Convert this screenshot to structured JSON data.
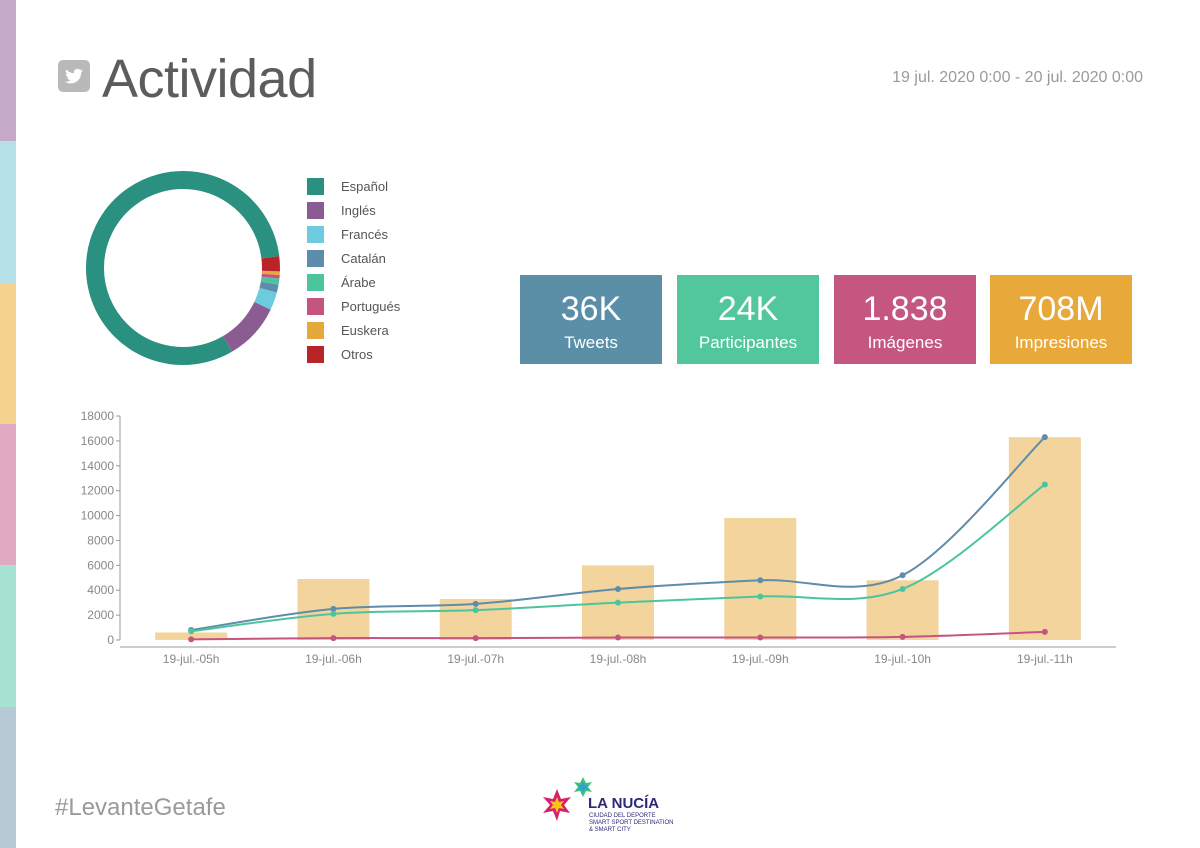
{
  "header": {
    "title": "Actividad",
    "icon": "twitter-icon",
    "date_range": "19 jul. 2020 0:00 - 20 jul. 2020 0:00"
  },
  "side_strip_colors": [
    "#c4a9c8",
    "#b6e1e8",
    "#f5d38f",
    "#e2a9c3",
    "#a6e3d2",
    "#b8c9d6"
  ],
  "legend": [
    {
      "label": "Español",
      "color": "#2a9080"
    },
    {
      "label": "Inglés",
      "color": "#8a5c92"
    },
    {
      "label": "Francés",
      "color": "#6dcbe0"
    },
    {
      "label": "Catalán",
      "color": "#5d8daa"
    },
    {
      "label": "Árabe",
      "color": "#4cc59e"
    },
    {
      "label": "Portugués",
      "color": "#c65480"
    },
    {
      "label": "Euskera",
      "color": "#e6a83a"
    },
    {
      "label": "Otros",
      "color": "#b82428"
    }
  ],
  "kpis": [
    {
      "value": "36K",
      "label": "Tweets",
      "color": "#5b8fa8"
    },
    {
      "value": "24K",
      "label": "Participantes",
      "color": "#52c79b"
    },
    {
      "value": "1.838",
      "label": "Imágenes",
      "color": "#c5567f"
    },
    {
      "value": "708M",
      "label": "Impresiones",
      "color": "#e8a83a"
    }
  ],
  "footer": {
    "hashtag": "#LevanteGetafe",
    "logo_main": "LA NUCÍA",
    "logo_sub1": "CIUDAD DEL DEPORTE",
    "logo_sub2": "SMART SPORT DESTINATION",
    "logo_sub3": "& SMART CITY"
  },
  "chart_data": [
    {
      "type": "pie",
      "title": "",
      "categories": [
        "Español",
        "Inglés",
        "Francés",
        "Catalán",
        "Árabe",
        "Portugués",
        "Euskera",
        "Otros"
      ],
      "values": [
        81.5,
        9.5,
        3.0,
        1.3,
        1.0,
        0.6,
        0.6,
        2.5
      ],
      "colors": [
        "#2a9080",
        "#8a5c92",
        "#6dcbe0",
        "#5d8daa",
        "#4cc59e",
        "#c65480",
        "#e6a83a",
        "#b82428"
      ],
      "style": "donut"
    },
    {
      "type": "bar",
      "title": "",
      "categories": [
        "19-jul.-05h",
        "19-jul.-06h",
        "19-jul.-07h",
        "19-jul.-08h",
        "19-jul.-09h",
        "19-jul.-10h",
        "19-jul.-11h"
      ],
      "ylim": [
        0,
        18000
      ],
      "yticks": [
        0,
        2000,
        4000,
        6000,
        8000,
        10000,
        12000,
        14000,
        16000,
        18000
      ],
      "bars": {
        "values": [
          600,
          4900,
          3300,
          6000,
          9800,
          4800,
          16300
        ],
        "color": "#f2d49c"
      },
      "series": [
        {
          "type": "line",
          "values": [
            800,
            2500,
            2900,
            4100,
            4800,
            5200,
            16300
          ],
          "color": "#5d8daa"
        },
        {
          "type": "line",
          "values": [
            700,
            2100,
            2400,
            3000,
            3500,
            4100,
            12500
          ],
          "color": "#4cc59e"
        },
        {
          "type": "line",
          "values": [
            50,
            150,
            150,
            200,
            200,
            250,
            650
          ],
          "color": "#c65480"
        }
      ],
      "grid": false
    }
  ]
}
